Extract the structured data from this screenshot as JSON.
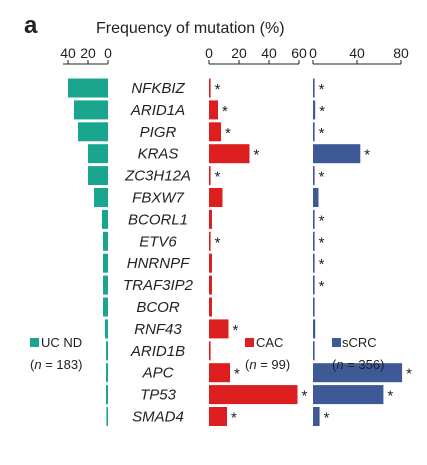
{
  "chart_data": {
    "type": "bar",
    "panel_label": "a",
    "title": "Frequency of mutation (%)",
    "categories": [
      "NFKBIZ",
      "ARID1A",
      "PIGR",
      "KRAS",
      "ZC3H12A",
      "FBXW7",
      "BCORL1",
      "ETV6",
      "HNRNPF",
      "TRAF3IP2",
      "BCOR",
      "RNF43",
      "ARID1B",
      "APC",
      "TP53",
      "SMAD4"
    ],
    "series": [
      {
        "name": "UC ND",
        "n_label_prefix": "(",
        "n_label_italic": "n",
        "n_label_suffix": " = 183)",
        "color": "#1aa58e",
        "ticks": [
          40,
          20,
          0
        ],
        "xlim": [
          0,
          45
        ],
        "values": [
          40,
          34,
          30,
          20,
          20,
          14,
          6,
          5,
          5,
          5,
          5,
          3,
          2,
          2,
          2,
          1
        ],
        "significant": [
          false,
          false,
          false,
          false,
          false,
          false,
          false,
          false,
          false,
          false,
          false,
          false,
          false,
          false,
          false,
          false
        ]
      },
      {
        "name": "CAC",
        "n_label_prefix": "(",
        "n_label_italic": "n",
        "n_label_suffix": " = 99)",
        "color": "#dc1e1e",
        "ticks": [
          0,
          20,
          40,
          60
        ],
        "xlim": [
          0,
          60
        ],
        "values": [
          0,
          6,
          8,
          27,
          0,
          9,
          2,
          0,
          2,
          2,
          2,
          13,
          1,
          14,
          59,
          12
        ],
        "significant": [
          true,
          true,
          true,
          true,
          true,
          false,
          false,
          true,
          false,
          false,
          false,
          true,
          false,
          true,
          true,
          true
        ]
      },
      {
        "name": "sCRC",
        "n_label_prefix": "(",
        "n_label_italic": "n",
        "n_label_suffix": " = 356)",
        "color": "#3d5a96",
        "ticks": [
          0,
          40,
          80
        ],
        "xlim": [
          0,
          80
        ],
        "values": [
          1,
          2,
          0,
          43,
          1,
          5,
          1,
          1,
          1,
          1,
          0,
          2,
          1,
          81,
          64,
          6
        ],
        "significant": [
          true,
          true,
          true,
          true,
          true,
          false,
          true,
          true,
          true,
          true,
          false,
          false,
          false,
          true,
          true,
          true
        ]
      }
    ],
    "significance_marker": "*",
    "grid": false
  }
}
